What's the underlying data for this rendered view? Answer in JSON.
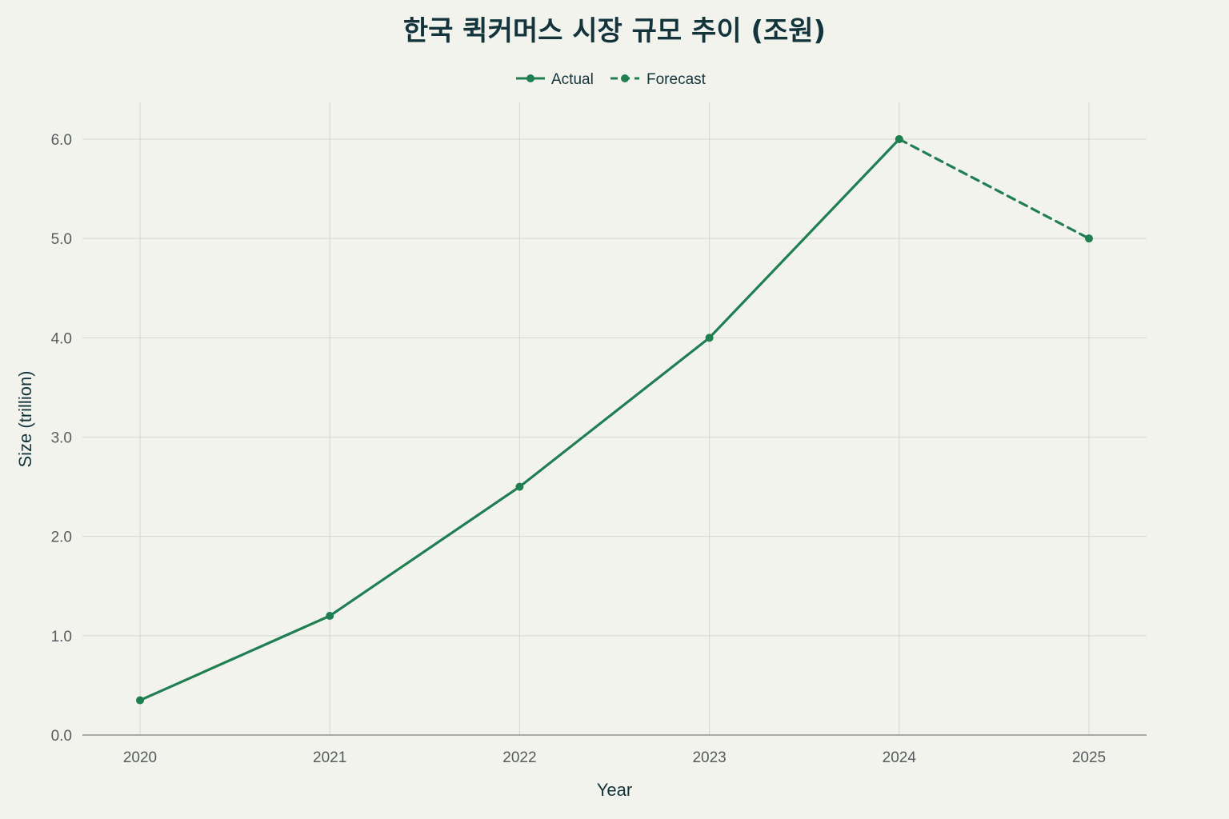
{
  "chart_data": {
    "type": "line",
    "title": "한국 퀵커머스 시장 규모 추이 (조원)",
    "xlabel": "Year",
    "ylabel": "Size (trillion)",
    "categories": [
      "2020",
      "2021",
      "2022",
      "2023",
      "2024",
      "2025"
    ],
    "ylim": [
      0,
      6.0
    ],
    "yticks": [
      "0.0",
      "1.0",
      "2.0",
      "3.0",
      "4.0",
      "5.0",
      "6.0"
    ],
    "grid": true,
    "legend_position": "top-center",
    "series": [
      {
        "name": "Actual",
        "style": "solid",
        "color": "#1f7f50",
        "points": [
          {
            "x": "2020",
            "y": 0.35
          },
          {
            "x": "2021",
            "y": 1.2
          },
          {
            "x": "2022",
            "y": 2.5
          },
          {
            "x": "2023",
            "y": 4.0
          },
          {
            "x": "2024",
            "y": 6.0
          }
        ]
      },
      {
        "name": "Forecast",
        "style": "dashed",
        "color": "#1f7f50",
        "points": [
          {
            "x": "2024",
            "y": 6.0
          },
          {
            "x": "2025",
            "y": 5.0
          }
        ]
      }
    ]
  }
}
